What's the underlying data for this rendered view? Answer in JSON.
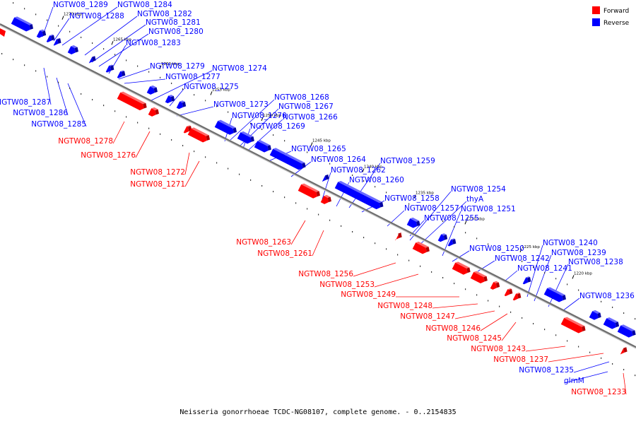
{
  "colors": {
    "forward": "#ff0000",
    "reverse": "#0000ff",
    "backbone": "#808080"
  },
  "legend": {
    "forward": "Forward",
    "reverse": "Reverse"
  },
  "caption": "Neisseria gonorrhoeae TCDC-NG08107, complete genome. - 0..2154835",
  "ticks": [
    "1275 kbp",
    "1270 kbp",
    "1265 kbp",
    "1260 kbp",
    "1255 kbp",
    "1250 kbp",
    "1245 kbp",
    "1240 kbp",
    "1235 kbp",
    "1230 kbp",
    "1225 kbp",
    "1220 kbp"
  ],
  "genes_reverse": [
    "NGTW08_1289",
    "NGTW08_1288",
    "NGTW08_1284",
    "NGTW08_1282",
    "NGTW08_1281",
    "NGTW08_1280",
    "NGTW08_1283",
    "NGTW08_1279",
    "NGTW08_1277",
    "NGTW08_1274",
    "NGTW08_1275",
    "NGTW08_1287",
    "NGTW08_1286",
    "NGTW08_1285",
    "NGTW08_1268",
    "NGTW08_1273",
    "NGTW08_1267",
    "NGTW08_1270",
    "NGTW08_1266",
    "NGTW08_1269",
    "NGTW08_1265",
    "NGTW08_1264",
    "NGTW08_1259",
    "NGTW08_1262",
    "NGTW08_1260",
    "NGTW08_1254",
    "NGTW08_1258",
    "thyA",
    "NGTW08_1257",
    "NGTW08_1251",
    "NGTW08_1255",
    "NGTW08_1250",
    "NGTW08_1240",
    "NGTW08_1242",
    "NGTW08_1239",
    "NGTW08_1241",
    "NGTW08_1238",
    "NGTW08_1236",
    "NGTW08_1235",
    "glmM"
  ],
  "genes_forward": [
    "NGTW08_1278",
    "NGTW08_1276",
    "NGTW08_1272",
    "NGTW08_1271",
    "NGTW08_1263",
    "NGTW08_1261",
    "NGTW08_1256",
    "NGTW08_1253",
    "NGTW08_1249",
    "NGTW08_1248",
    "NGTW08_1247",
    "NGTW08_1246",
    "NGTW08_1245",
    "NGTW08_1243",
    "NGTW08_1237",
    "NGTW08_1233"
  ]
}
